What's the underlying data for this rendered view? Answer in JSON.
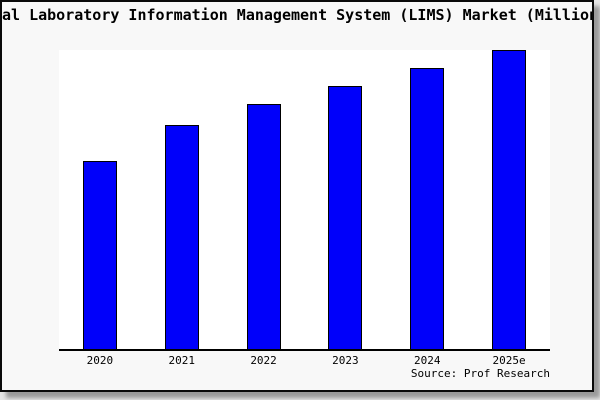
{
  "title": "al Laboratory Information Management System (LIMS) Market (Million",
  "source": "Source: Prof Research",
  "panel": {
    "background": "#f8f8f8",
    "plot_background": "#ffffff",
    "border_color": "#0a0a0a",
    "shadow_color": "#9a9a9a",
    "text_color": "#000000"
  },
  "chart_data": {
    "type": "bar",
    "title": "al Laboratory Information Management System (LIMS) Market (Million",
    "categories": [
      "2020",
      "2021",
      "2022",
      "2023",
      "2024",
      "2025e"
    ],
    "values": [
      63,
      75,
      82,
      88,
      94,
      100
    ],
    "value_unit": "relative bar height, tallest bar (2025e) = 100; y-axis is unlabeled",
    "xlabel": "",
    "ylabel": "",
    "ylim": [
      0,
      100
    ],
    "grid": false,
    "legend": false,
    "bar_color": "#0000fa",
    "bar_border_color": "#000000",
    "axis_color": "#000000",
    "source": "Source: Prof Research"
  }
}
